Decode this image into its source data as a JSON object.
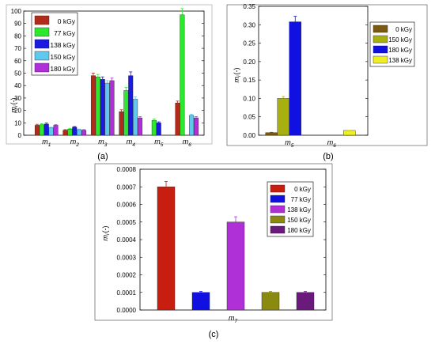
{
  "chart_data": [
    {
      "type": "bar",
      "panel_label": "(a)",
      "categories": [
        "m1",
        "m2",
        "m3",
        "m4",
        "m5",
        "m6"
      ],
      "category_labels": [
        {
          "base": "m",
          "sub": "1"
        },
        {
          "base": "m",
          "sub": "2"
        },
        {
          "base": "m",
          "sub": "3"
        },
        {
          "base": "m",
          "sub": "4"
        },
        {
          "base": "m",
          "sub": "5"
        },
        {
          "base": "m",
          "sub": "6"
        }
      ],
      "ylabel": {
        "base": "m",
        "sub": "i",
        "unit": "(-)"
      },
      "ylim": [
        0,
        100
      ],
      "yticks": [
        0,
        10,
        20,
        30,
        40,
        50,
        60,
        70,
        80,
        90,
        100
      ],
      "legend_position": "top-left",
      "series": [
        {
          "name": "0 kGy",
          "color": "#b22a1a",
          "values": [
            8,
            4,
            48,
            19,
            0,
            26
          ],
          "errors": [
            0.8,
            0.5,
            2,
            1.5,
            0,
            1.5
          ]
        },
        {
          "name": "77 kGy",
          "color": "#2ee82e",
          "values": [
            8.5,
            5,
            47,
            36,
            12,
            97
          ],
          "errors": [
            0.8,
            0.5,
            2,
            2.5,
            1,
            5
          ]
        },
        {
          "name": "138 kGy",
          "color": "#1a1ae0",
          "values": [
            9,
            6.5,
            45,
            48,
            10,
            0
          ],
          "errors": [
            0.8,
            0.5,
            2,
            3,
            0.8,
            0
          ]
        },
        {
          "name": "150 kGy",
          "color": "#5ec8ee",
          "values": [
            6,
            4.5,
            42,
            29,
            0,
            16
          ],
          "errors": [
            0.5,
            0.5,
            2,
            2,
            0,
            1
          ]
        },
        {
          "name": "180 kGy",
          "color": "#b030d8",
          "values": [
            8,
            4,
            44,
            14,
            0,
            14
          ],
          "errors": [
            0.5,
            0.5,
            2,
            1,
            0,
            1
          ]
        }
      ]
    },
    {
      "type": "bar",
      "panel_label": "(b)",
      "categories": [
        "m5",
        "m6"
      ],
      "category_labels": [
        {
          "base": "m",
          "sub": "5"
        },
        {
          "base": "m",
          "sub": "6"
        }
      ],
      "ylabel": {
        "base": "m",
        "sub": "i",
        "unit": "(-)"
      },
      "ylim": [
        0,
        0.35
      ],
      "yticks": [
        0,
        0.05,
        0.1,
        0.15,
        0.2,
        0.25,
        0.3,
        0.35
      ],
      "ytick_labels": [
        "0.00",
        "0.05",
        "0.10",
        "0.15",
        "0.20",
        "0.25",
        "0.30",
        "0.35"
      ],
      "legend_position": "top-right",
      "series": [
        {
          "name": "0 kGy",
          "color": "#7a5a10",
          "values": [
            0.007,
            0
          ],
          "errors": [
            0.001,
            0
          ]
        },
        {
          "name": "150 kGy",
          "color": "#a8b010",
          "values": [
            0.1,
            0
          ],
          "errors": [
            0.005,
            0
          ]
        },
        {
          "name": "180 kGy",
          "color": "#1010e0",
          "values": [
            0.308,
            0
          ],
          "errors": [
            0.015,
            0
          ]
        },
        {
          "name": "138 kGy",
          "color": "#f0f020",
          "values": [
            0,
            0.013
          ],
          "errors": [
            0,
            0.001
          ]
        }
      ]
    },
    {
      "type": "bar",
      "panel_label": "(c)",
      "categories": [
        "m7"
      ],
      "category_labels": [
        {
          "base": "m",
          "sub": "7"
        }
      ],
      "ylabel": {
        "base": "m",
        "sub": "i",
        "unit": "(-)"
      },
      "ylim": [
        0,
        0.0008
      ],
      "yticks": [
        0,
        0.0001,
        0.0002,
        0.0003,
        0.0004,
        0.0005,
        0.0006,
        0.0007,
        0.0008
      ],
      "ytick_labels": [
        "0.0000",
        "0.0001",
        "0.0002",
        "0.0003",
        "0.0004",
        "0.0005",
        "0.0006",
        "0.0007",
        "0.0008"
      ],
      "legend_position": "top-right",
      "series": [
        {
          "name": "0 kGy",
          "color": "#c81e10",
          "values": [
            0.0007
          ],
          "errors": [
            3e-05
          ]
        },
        {
          "name": "77 kGy",
          "color": "#1010e0",
          "values": [
            0.0001
          ],
          "errors": [
            5e-06
          ]
        },
        {
          "name": "138 kGy",
          "color": "#b030d8",
          "values": [
            0.0005
          ],
          "errors": [
            3e-05
          ]
        },
        {
          "name": "150 kGy",
          "color": "#8a8a10",
          "values": [
            0.0001
          ],
          "errors": [
            5e-06
          ]
        },
        {
          "name": "180 kGy",
          "color": "#6a1a7a",
          "values": [
            0.0001
          ],
          "errors": [
            5e-06
          ]
        }
      ]
    }
  ]
}
